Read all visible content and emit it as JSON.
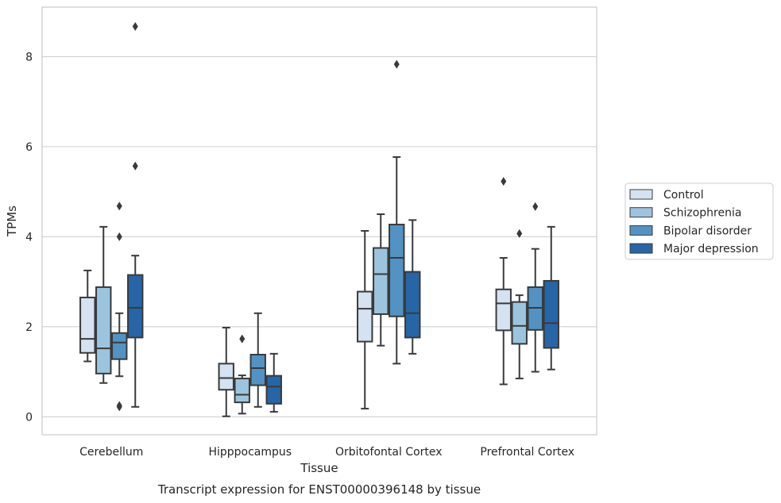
{
  "chart_data": {
    "type": "box",
    "title": "",
    "caption": "Transcript expression for ENST00000396148 by tissue",
    "xlabel": "Tissue",
    "ylabel": "TPMs",
    "ylim": [
      -0.4,
      9.1
    ],
    "yticks": [
      0,
      2,
      4,
      6,
      8
    ],
    "grid": "horizontal",
    "legend_position": "right",
    "categories": [
      "Cerebellum",
      "Hipppocampus",
      "Orbitofontal Cortex",
      "Prefrontal Cortex"
    ],
    "series": [
      {
        "name": "Control",
        "color": "#d4e2f1",
        "boxes": [
          {
            "whislo": 1.23,
            "q1": 1.42,
            "med": 1.73,
            "q3": 2.65,
            "whishi": 3.25,
            "fliers": []
          },
          {
            "whislo": 0.01,
            "q1": 0.6,
            "med": 0.86,
            "q3": 1.18,
            "whishi": 1.98,
            "fliers": []
          },
          {
            "whislo": 0.18,
            "q1": 1.67,
            "med": 2.4,
            "q3": 2.78,
            "whishi": 4.13,
            "fliers": []
          },
          {
            "whislo": 0.72,
            "q1": 1.92,
            "med": 2.52,
            "q3": 2.83,
            "whishi": 3.53,
            "fliers": [
              5.23
            ]
          }
        ]
      },
      {
        "name": "Schizophrenia",
        "color": "#9dc4de",
        "boxes": [
          {
            "whislo": 0.75,
            "q1": 0.96,
            "med": 1.52,
            "q3": 2.88,
            "whishi": 4.22,
            "fliers": []
          },
          {
            "whislo": 0.07,
            "q1": 0.32,
            "med": 0.49,
            "q3": 0.85,
            "whishi": 0.92,
            "fliers": [
              1.73
            ]
          },
          {
            "whislo": 1.58,
            "q1": 2.28,
            "med": 3.17,
            "q3": 3.75,
            "whishi": 4.5,
            "fliers": []
          },
          {
            "whislo": 0.85,
            "q1": 1.62,
            "med": 2.02,
            "q3": 2.55,
            "whishi": 2.7,
            "fliers": [
              4.07
            ]
          }
        ]
      },
      {
        "name": "Bipolar disorder",
        "color": "#5393c4",
        "boxes": [
          {
            "whislo": 0.9,
            "q1": 1.28,
            "med": 1.65,
            "q3": 1.86,
            "whishi": 2.3,
            "fliers": [
              4.68,
              4.0,
              0.25,
              0.22
            ]
          },
          {
            "whislo": 0.22,
            "q1": 0.7,
            "med": 1.08,
            "q3": 1.38,
            "whishi": 2.3,
            "fliers": []
          },
          {
            "whislo": 1.18,
            "q1": 2.23,
            "med": 3.53,
            "q3": 4.27,
            "whishi": 5.77,
            "fliers": [
              7.83
            ]
          },
          {
            "whislo": 1.0,
            "q1": 1.93,
            "med": 2.42,
            "q3": 2.88,
            "whishi": 3.73,
            "fliers": [
              4.67
            ]
          }
        ]
      },
      {
        "name": "Major depression",
        "color": "#2666a6",
        "boxes": [
          {
            "whislo": 0.22,
            "q1": 1.76,
            "med": 2.42,
            "q3": 3.15,
            "whishi": 3.58,
            "fliers": [
              8.67,
              5.57
            ]
          },
          {
            "whislo": 0.11,
            "q1": 0.29,
            "med": 0.67,
            "q3": 0.91,
            "whishi": 1.4,
            "fliers": []
          },
          {
            "whislo": 1.4,
            "q1": 1.76,
            "med": 2.3,
            "q3": 3.22,
            "whishi": 4.37,
            "fliers": []
          },
          {
            "whislo": 1.05,
            "q1": 1.53,
            "med": 2.08,
            "q3": 3.02,
            "whishi": 4.22,
            "fliers": []
          }
        ]
      }
    ]
  }
}
